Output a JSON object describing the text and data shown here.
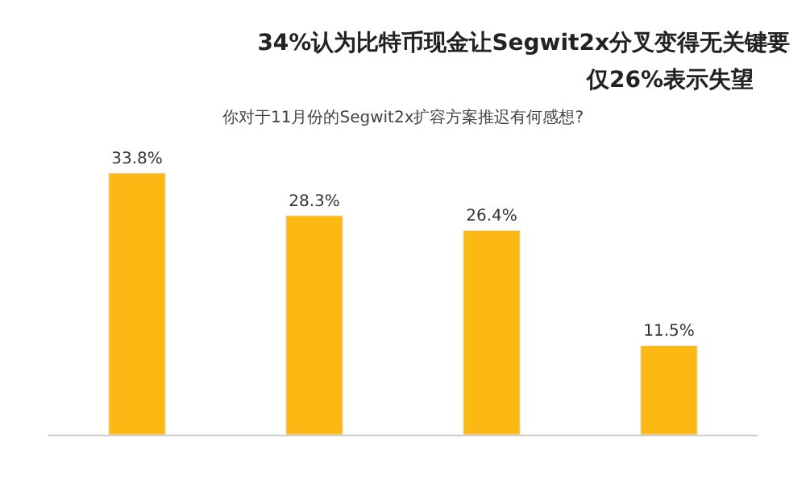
{
  "chart_data": {
    "type": "bar",
    "title": "34%认为比特币现金让Segwit2x分叉变得无关键要",
    "annotations": [
      "仅26%表示失望"
    ],
    "subtitle": "你对于11月份的Segwit2x扩容方案推迟有何感想?",
    "categories": [
      null,
      null,
      null,
      null
    ],
    "values": [
      33.8,
      28.3,
      26.4,
      11.5
    ],
    "value_labels": [
      "33.8%",
      "28.3%",
      "26.4%",
      "11.5%"
    ],
    "color": "#fcb913"
  }
}
